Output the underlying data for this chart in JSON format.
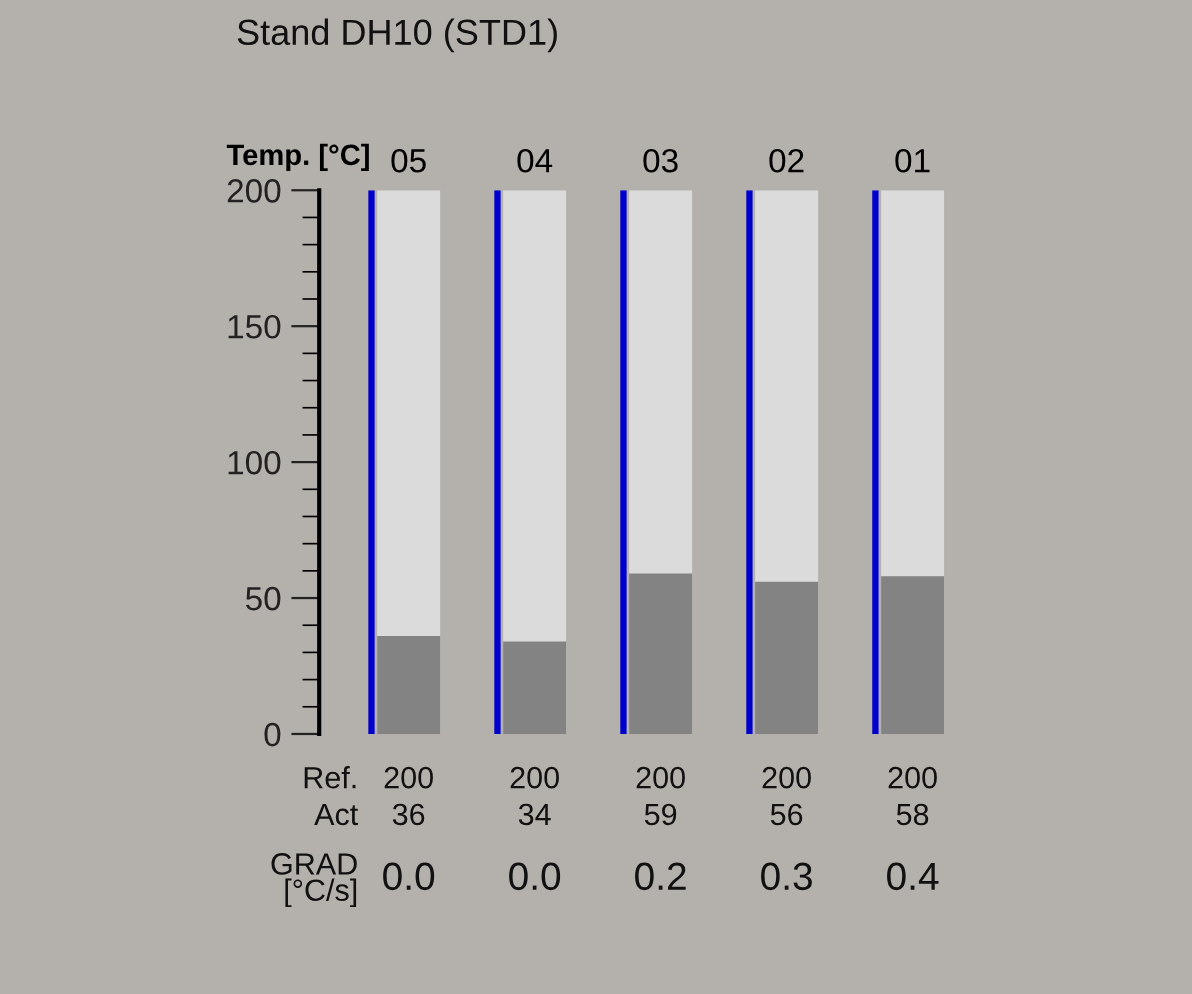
{
  "chart_data": {
    "type": "bar",
    "title": "Stand DH10 (STD1)",
    "ylabel": "Temp. [°C]",
    "categories": [
      "05",
      "04",
      "03",
      "02",
      "01"
    ],
    "series": [
      {
        "name": "Ref.",
        "color": "#0000cc",
        "values": [
          200,
          200,
          200,
          200,
          200
        ],
        "value_labels": [
          "200",
          "200",
          "200",
          "200",
          "200"
        ]
      },
      {
        "name": "Act",
        "color": "#838383",
        "values": [
          36,
          34,
          59,
          56,
          58
        ],
        "value_labels": [
          "36",
          "34",
          "59",
          "56",
          "58"
        ]
      }
    ],
    "ylim": [
      0,
      200
    ],
    "yticks": [
      0,
      50,
      100,
      150,
      200
    ],
    "annotations": [
      "GRAD\n[°C/s]",
      "0.0",
      "0.0",
      "0.2",
      "0.3",
      "0.4"
    ]
  }
}
